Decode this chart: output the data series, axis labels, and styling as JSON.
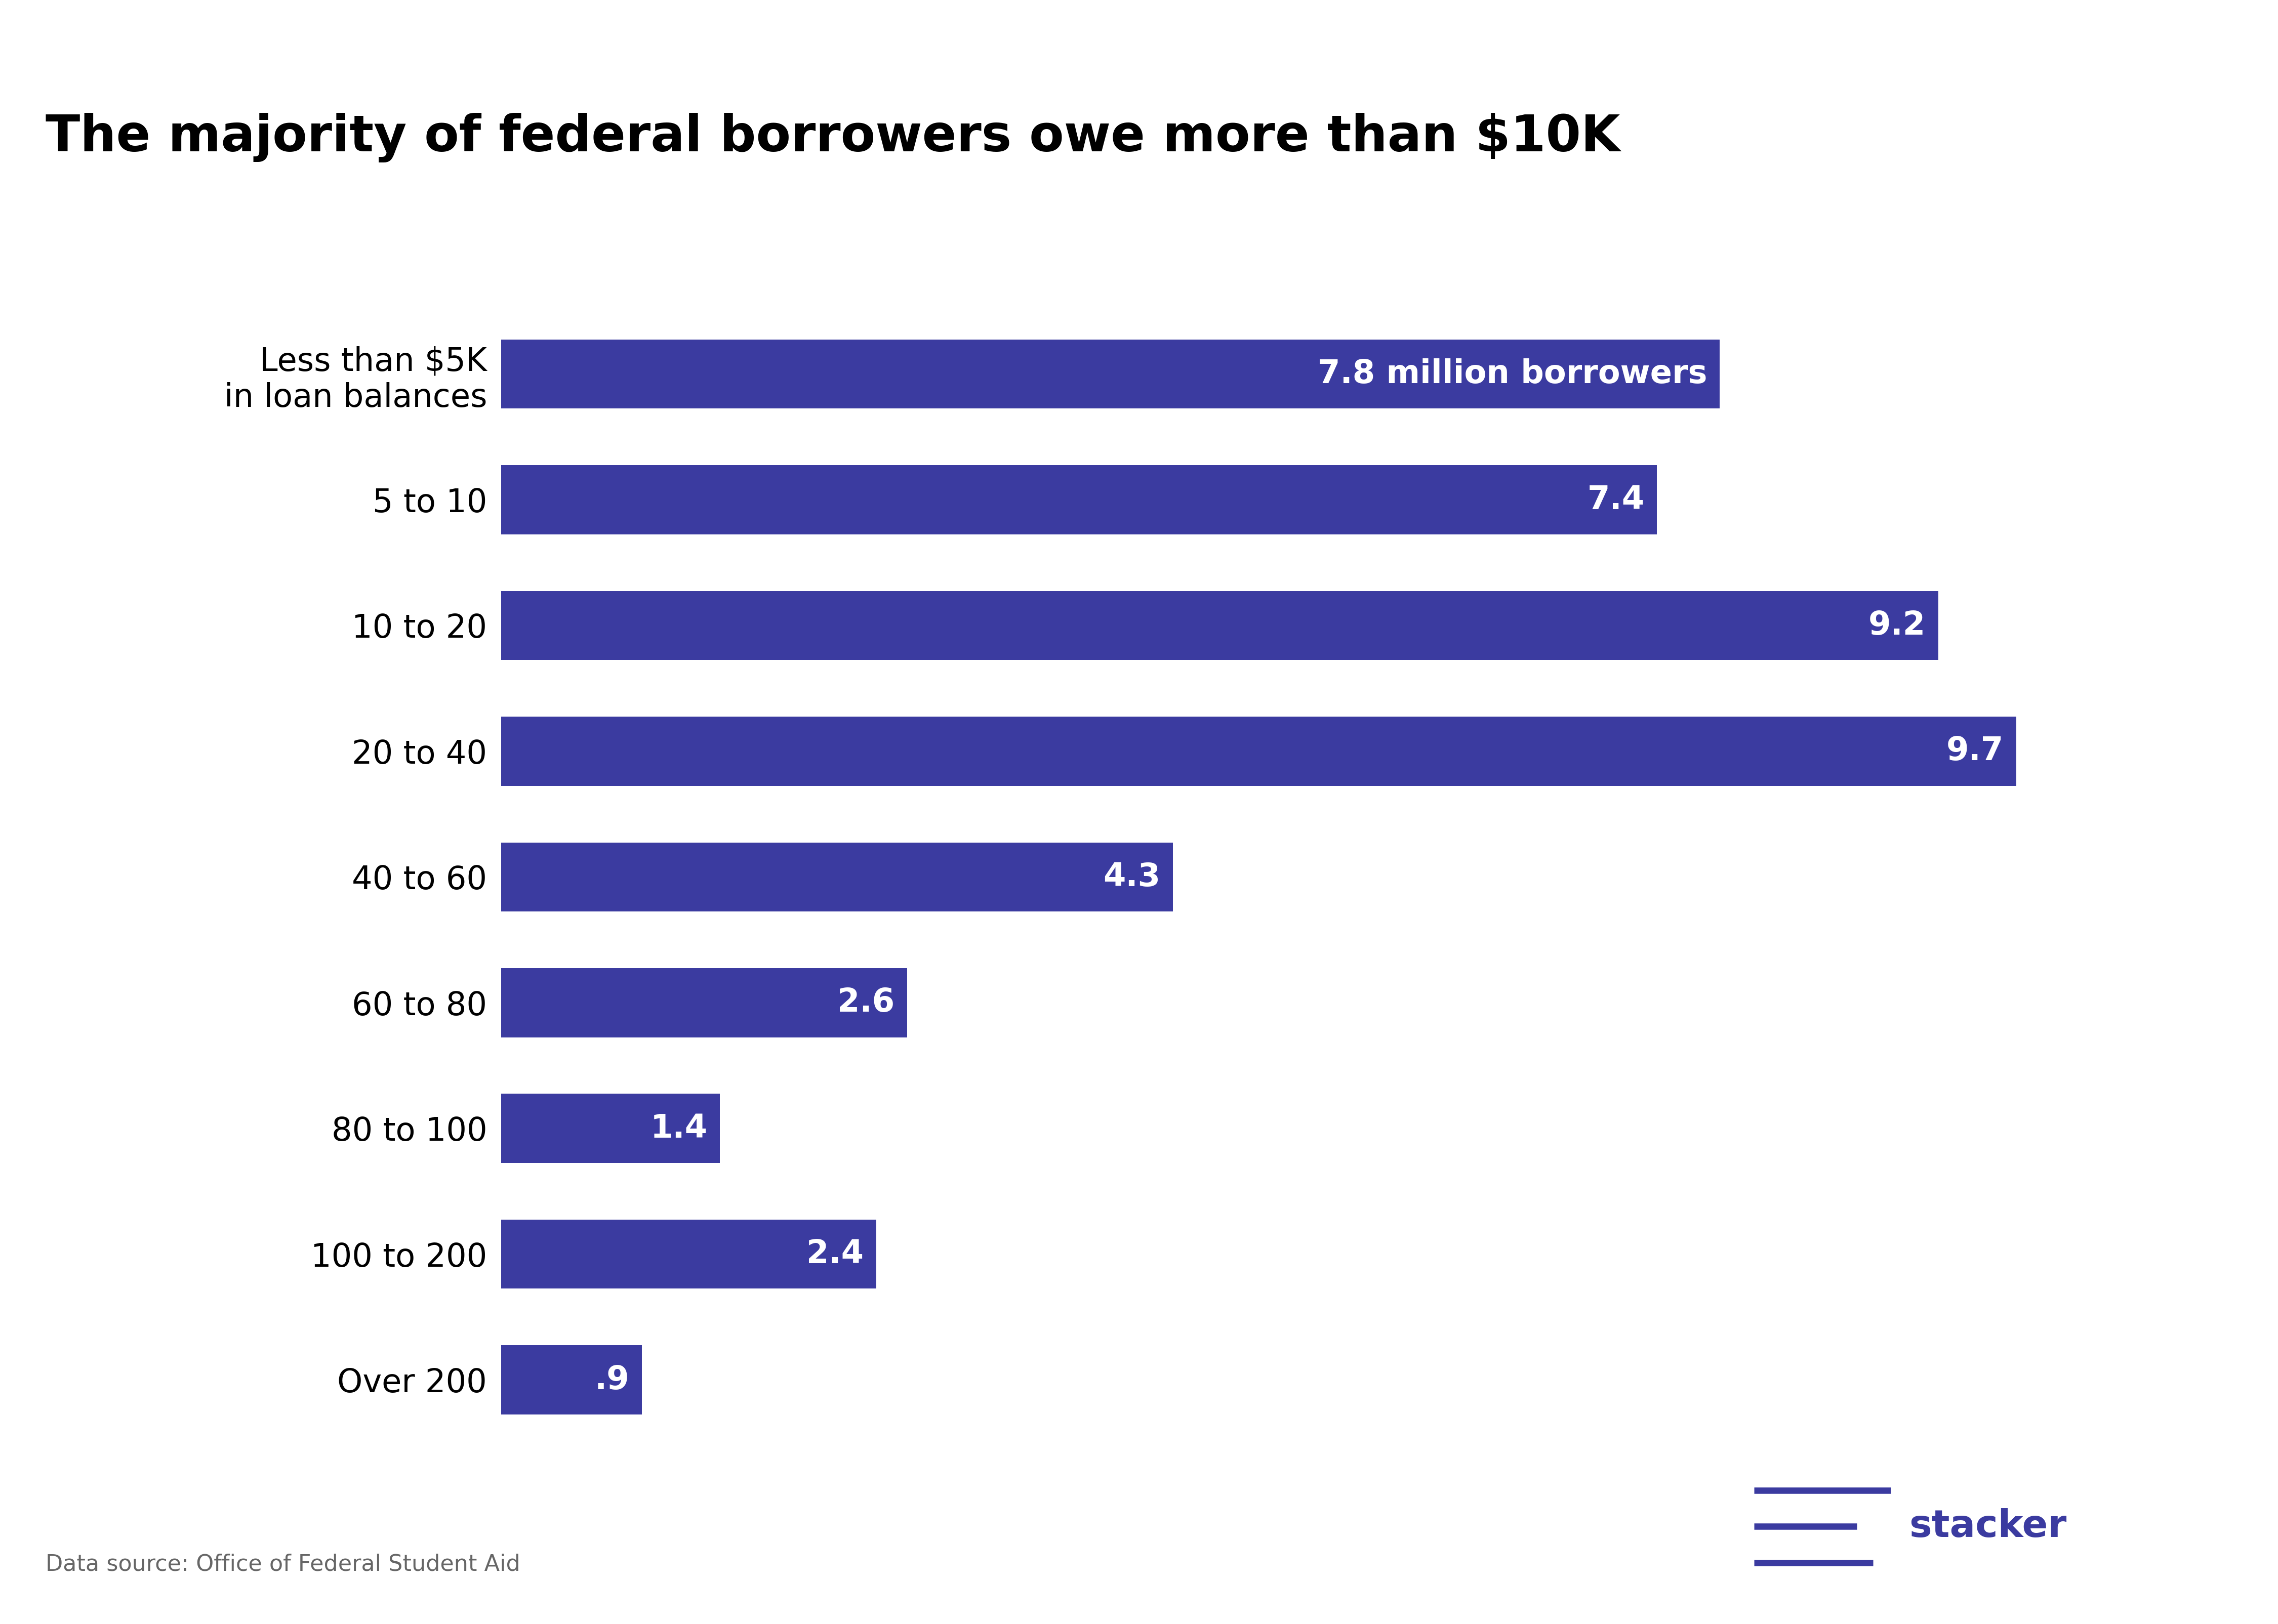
{
  "title": "The majority of federal borrowers owe more than $10K",
  "categories": [
    "Less than $5K\nin loan balances",
    "5 to 10",
    "10 to 20",
    "20 to 40",
    "40 to 60",
    "60 to 80",
    "80 to 100",
    "100 to 200",
    "Over 200"
  ],
  "values": [
    7.8,
    7.4,
    9.2,
    9.7,
    4.3,
    2.6,
    1.4,
    2.4,
    0.9
  ],
  "labels": [
    "7.8 million borrowers",
    "7.4",
    "9.2",
    "9.7",
    "4.3",
    "2.6",
    "1.4",
    "2.4",
    ".9"
  ],
  "bar_color": "#3B3BA0",
  "background_color": "#FFFFFF",
  "title_fontsize": 72,
  "label_fontsize": 46,
  "tick_fontsize": 46,
  "source_text": "Data source: Office of Federal Student Aid",
  "source_fontsize": 32,
  "source_color": "#666666",
  "stacker_color": "#3B3BA0",
  "stacker_fontsize": 54,
  "xlim": [
    0,
    10.5
  ],
  "bar_height": 0.55
}
